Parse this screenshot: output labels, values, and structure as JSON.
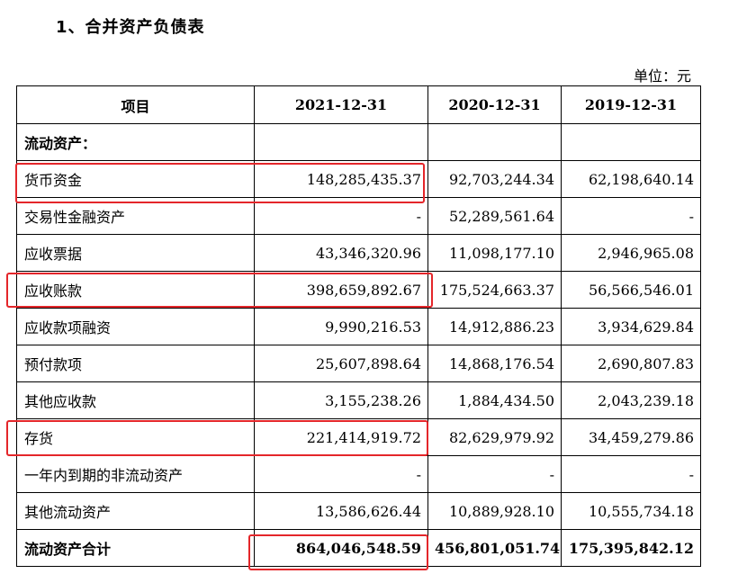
{
  "title": "1、合并资产负债表",
  "unit": "单位：元",
  "headers": [
    "项目",
    "2021-12-31",
    "2020-12-31",
    "2019-12-31"
  ],
  "rows": [
    {
      "label": "流动资产：",
      "v2021": "",
      "v2020": "",
      "v2019": ""
    },
    {
      "label": "货币资金",
      "v2021": "148,285,435.37",
      "v2020": "92,703,244.34",
      "v2019": "62,198,640.14"
    },
    {
      "label": "交易性金融资产",
      "v2021": "-",
      "v2020": "52,289,561.64",
      "v2019": "-"
    },
    {
      "label": "应收票据",
      "v2021": "43,346,320.96",
      "v2020": "11,098,177.10",
      "v2019": "2,946,965.08"
    },
    {
      "label": "应收账款",
      "v2021": "398,659,892.67",
      "v2020": "175,524,663.37",
      "v2019": "56,566,546.01"
    },
    {
      "label": "应收款项融资",
      "v2021": "9,990,216.53",
      "v2020": "14,912,886.23",
      "v2019": "3,934,629.84"
    },
    {
      "label": "预付款项",
      "v2021": "25,607,898.64",
      "v2020": "14,868,176.54",
      "v2019": "2,690,807.83"
    },
    {
      "label": "其他应收款",
      "v2021": "3,155,238.26",
      "v2020": "1,884,434.50",
      "v2019": "2,043,239.18"
    },
    {
      "label": "存货",
      "v2021": "221,414,919.72",
      "v2020": "82,629,979.92",
      "v2019": "34,459,279.86"
    },
    {
      "label": "一年内到期的非流动资产",
      "v2021": "-",
      "v2020": "-",
      "v2019": "-"
    },
    {
      "label": "其他流动资产",
      "v2021": "13,586,626.44",
      "v2020": "10,889,928.10",
      "v2019": "10,555,734.18"
    },
    {
      "label": "流动资产合计",
      "v2021": "864,046,548.59",
      "v2020": "456,801,051.74",
      "v2019": "175,395,842.12"
    }
  ],
  "highlight_color": "#e4262a"
}
